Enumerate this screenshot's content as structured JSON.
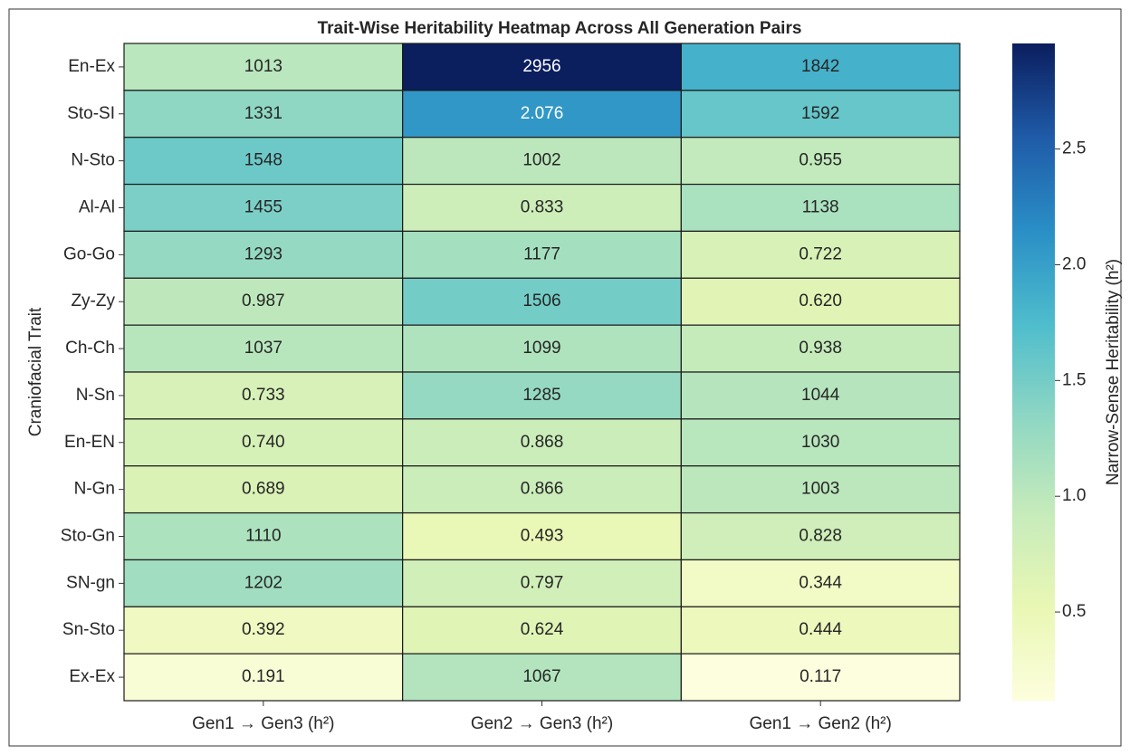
{
  "chart_data": {
    "type": "heatmap",
    "title": "Trait-Wise Heritability Heatmap Across All Generation Pairs",
    "y_label": "Craniofacial Trait",
    "colorbar_label": "Narrow-Sense Heritability (h²)",
    "x_categories": [
      "Gen1 → Gen3 (h²)",
      "Gen2 → Gen3 (h²)",
      "Gen1 → Gen2 (h²)"
    ],
    "y_categories": [
      "En-Ex",
      "Sto-SI",
      "N-Sto",
      "Al-Al",
      "Go-Go",
      "Zy-Zy",
      "Ch-Ch",
      "N-Sn",
      "En-EN",
      "N-Gn",
      "Sto-Gn",
      "SN-gn",
      "Sn-Sto",
      "Ex-Ex"
    ],
    "values": [
      [
        1.013,
        2.956,
        1.842
      ],
      [
        1.331,
        2.076,
        1.592
      ],
      [
        1.548,
        1.002,
        0.955
      ],
      [
        1.455,
        0.833,
        1.138
      ],
      [
        1.293,
        1.177,
        0.722
      ],
      [
        0.987,
        1.506,
        0.62
      ],
      [
        1.037,
        1.099,
        0.938
      ],
      [
        0.733,
        1.285,
        1.044
      ],
      [
        0.74,
        0.868,
        1.03
      ],
      [
        0.689,
        0.866,
        1.003
      ],
      [
        1.11,
        0.493,
        0.828
      ],
      [
        1.202,
        0.797,
        0.344
      ],
      [
        0.392,
        0.624,
        0.444
      ],
      [
        0.191,
        1.067,
        0.117
      ]
    ],
    "value_labels": [
      [
        "1013",
        "2956",
        "1842"
      ],
      [
        "1331",
        "2.076",
        "1592"
      ],
      [
        "1548",
        "1002",
        "0.955"
      ],
      [
        "1455",
        "0.833",
        "1138"
      ],
      [
        "1293",
        "1177",
        "0.722"
      ],
      [
        "0.987",
        "1506",
        "0.620"
      ],
      [
        "1037",
        "1099",
        "0.938"
      ],
      [
        "0.733",
        "1285",
        "1044"
      ],
      [
        "0.740",
        "0.868",
        "1030"
      ],
      [
        "0.689",
        "0.866",
        "1003"
      ],
      [
        "1110",
        "0.493",
        "0.828"
      ],
      [
        "1202",
        "0.797",
        "0.344"
      ],
      [
        "0.392",
        "0.624",
        "0.444"
      ],
      [
        "0.191",
        "1067",
        "0.117"
      ]
    ],
    "colormap": [
      "#fdfedd",
      "#e9f7b4",
      "#c6ebbb",
      "#8fd7c3",
      "#4fbdcc",
      "#2a8fc6",
      "#1f5ba8",
      "#0b1e5e"
    ],
    "clim": [
      0.117,
      2.956
    ],
    "cticks": [
      0.5,
      {
        "value": 1,
        "label": "1.0"
      },
      1.5,
      {
        "value": 2,
        "label": "2.0"
      },
      2.5
    ]
  }
}
